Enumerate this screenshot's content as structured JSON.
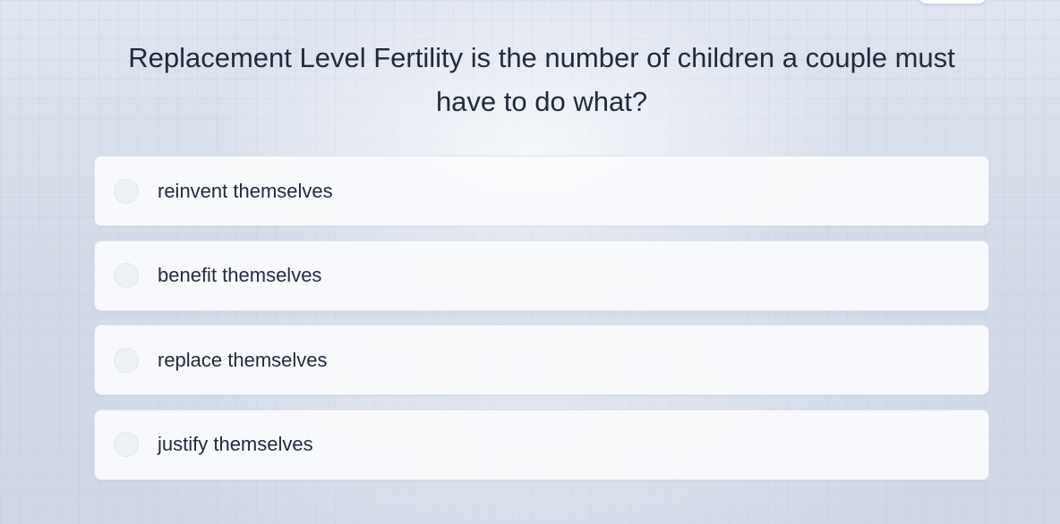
{
  "question": {
    "text": "Replacement Level Fertility is the number of children a couple must have to do what?"
  },
  "options": [
    {
      "label": "reinvent themselves",
      "selected": false
    },
    {
      "label": "benefit themselves",
      "selected": false
    },
    {
      "label": "replace themselves",
      "selected": false
    },
    {
      "label": "justify themselves",
      "selected": false
    }
  ]
}
